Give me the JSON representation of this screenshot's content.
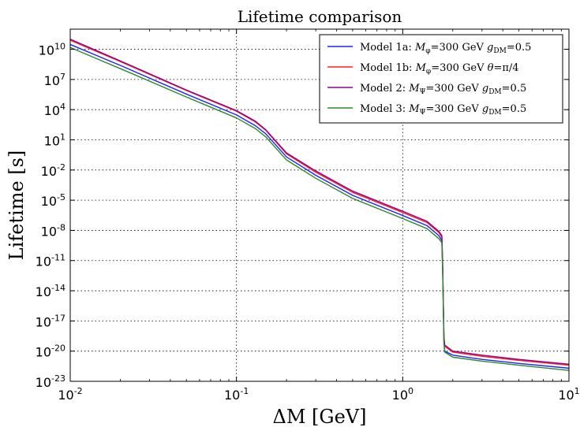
{
  "chart_data": {
    "type": "line",
    "title": "Lifetime comparison",
    "xlabel": "ΔM [GeV]",
    "ylabel": "Lifetime [s]",
    "xscale": "log",
    "yscale": "log",
    "xlim": [
      0.01,
      10
    ],
    "ylim": [
      1e-23,
      1000000000000.0
    ],
    "grid": true,
    "legend_position": "top-right",
    "x_ticks": [
      {
        "value": 0.01,
        "base": "10",
        "exp": "-2"
      },
      {
        "value": 0.1,
        "base": "10",
        "exp": "-1"
      },
      {
        "value": 1,
        "base": "10",
        "exp": "0"
      },
      {
        "value": 10,
        "base": "10",
        "exp": "1"
      }
    ],
    "y_ticks": [
      {
        "value": 1e-23,
        "base": "10",
        "exp": "-23"
      },
      {
        "value": 1e-20,
        "base": "10",
        "exp": "-20"
      },
      {
        "value": 1e-17,
        "base": "10",
        "exp": "-17"
      },
      {
        "value": 1e-14,
        "base": "10",
        "exp": "-14"
      },
      {
        "value": 1e-11,
        "base": "10",
        "exp": "-11"
      },
      {
        "value": 1e-08,
        "base": "10",
        "exp": "-8"
      },
      {
        "value": 1e-05,
        "base": "10",
        "exp": "-5"
      },
      {
        "value": 0.01,
        "base": "10",
        "exp": "-2"
      },
      {
        "value": 10,
        "base": "10",
        "exp": "1"
      },
      {
        "value": 10000,
        "base": "10",
        "exp": "4"
      },
      {
        "value": 10000000.0,
        "base": "10",
        "exp": "7"
      },
      {
        "value": 10000000000.0,
        "base": "10",
        "exp": "10"
      }
    ],
    "series": [
      {
        "name": "Model 1a: M_φ=300 GeV g_DM=0.5",
        "label_parts": {
          "model": "Model 1a:",
          "mass": "M",
          "mass_sub": "φ",
          "mass_val": "=300 GeV",
          "param": "g",
          "param_sub": "DM",
          "param_val": "=0.5"
        },
        "color": "#2020ff",
        "x": [
          0.01,
          0.02,
          0.05,
          0.1,
          0.13,
          0.15,
          0.2,
          0.3,
          0.5,
          1.0,
          1.4,
          1.65,
          1.72,
          1.74,
          1.77,
          1.79,
          2.0,
          3.0,
          5.0,
          10.0
        ],
        "y": [
          30000000000.0,
          250000000.0,
          350000.0,
          3000.0,
          250,
          40,
          0.2,
          0.003,
          3e-05,
          3e-07,
          3e-08,
          3e-09,
          1e-09,
          1e-12,
          1e-19,
          1e-20,
          4e-21,
          1.5e-21,
          6e-22,
          2e-22
        ]
      },
      {
        "name": "Model 1b: M_φ=300 GeV θ=π/4",
        "label_parts": {
          "model": "Model 1b:",
          "mass": "M",
          "mass_sub": "φ",
          "mass_val": "=300 GeV",
          "param": "θ",
          "param_sub": "",
          "param_val": "=π/4"
        },
        "color": "#ff2020",
        "x": [
          0.01,
          0.02,
          0.05,
          0.1,
          0.13,
          0.15,
          0.2,
          0.3,
          0.5,
          1.0,
          1.4,
          1.65,
          1.72,
          1.74,
          1.77,
          1.79,
          2.0,
          3.0,
          5.0,
          10.0
        ],
        "y": [
          80000000000.0,
          600000000.0,
          800000.0,
          7000.0,
          600,
          90,
          0.4,
          0.006,
          6e-05,
          6e-07,
          6e-08,
          6e-09,
          2e-09,
          2e-12,
          2e-19,
          3e-20,
          8e-21,
          3e-21,
          1.2e-21,
          4e-22
        ]
      },
      {
        "name": "Model 2: M_Ψ=300 GeV g_DM=0.5",
        "label_parts": {
          "model": "Model 2:",
          "mass": "M",
          "mass_sub": "Ψ",
          "mass_val": "=300 GeV",
          "param": "g",
          "param_sub": "DM",
          "param_val": "=0.5"
        },
        "color": "#8e008e",
        "x": [
          0.01,
          0.02,
          0.05,
          0.1,
          0.13,
          0.15,
          0.2,
          0.3,
          0.5,
          1.0,
          1.4,
          1.65,
          1.72,
          1.74,
          1.77,
          1.79,
          2.0,
          3.0,
          5.0,
          10.0
        ],
        "y": [
          100000000000.0,
          700000000.0,
          900000.0,
          8000.0,
          700,
          100,
          0.5,
          0.008,
          8e-05,
          8e-07,
          8e-08,
          8e-09,
          3e-09,
          3e-12,
          3e-19,
          4e-20,
          1e-20,
          4e-21,
          1.5e-21,
          5e-22
        ]
      },
      {
        "name": "Model 3: M_Ψ=300 GeV g_DM=0.5",
        "label_parts": {
          "model": "Model 3:",
          "mass": "M",
          "mass_sub": "Ψ",
          "mass_val": "=300 GeV",
          "param": "g",
          "param_sub": "DM",
          "param_val": "=0.5"
        },
        "color": "#2a8a2a",
        "x": [
          0.01,
          0.02,
          0.05,
          0.1,
          0.13,
          0.15,
          0.2,
          0.3,
          0.5,
          1.0,
          1.4,
          1.65,
          1.72,
          1.74,
          1.77,
          1.79,
          2.0,
          3.0,
          5.0,
          10.0
        ],
        "y": [
          15000000000.0,
          120000000.0,
          180000.0,
          1500.0,
          130,
          20,
          0.1,
          0.0015,
          1.5e-05,
          1.5e-07,
          1.5e-08,
          1.5e-09,
          6e-10,
          6e-13,
          6e-20,
          8e-21,
          2.5e-21,
          1e-21,
          4e-22,
          1.2e-22
        ]
      }
    ]
  }
}
